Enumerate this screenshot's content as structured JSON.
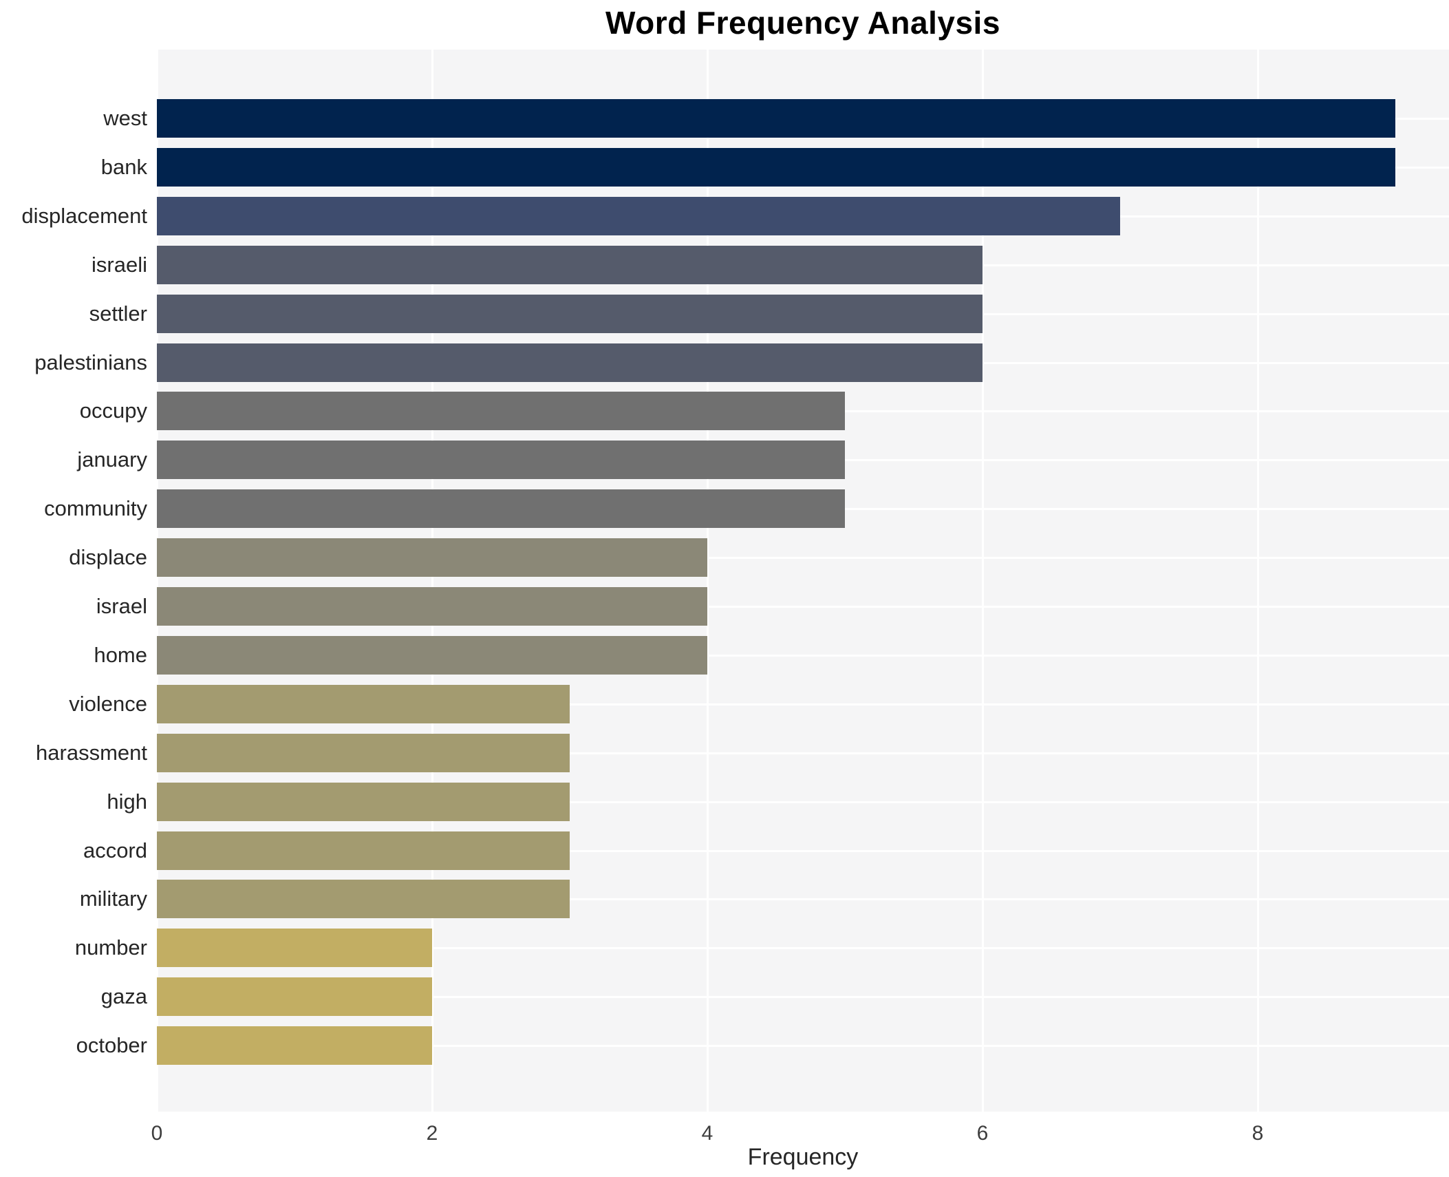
{
  "chart_data": {
    "type": "bar",
    "orientation": "horizontal",
    "title": "Word Frequency Analysis",
    "xlabel": "Frequency",
    "ylabel": "",
    "xlim": [
      0,
      9.39
    ],
    "xticks": [
      0,
      2,
      4,
      6,
      8
    ],
    "grid": true,
    "legend": "none",
    "categories": [
      "west",
      "bank",
      "displacement",
      "israeli",
      "settler",
      "palestinians",
      "occupy",
      "january",
      "community",
      "displace",
      "israel",
      "home",
      "violence",
      "harassment",
      "high",
      "accord",
      "military",
      "number",
      "gaza",
      "october"
    ],
    "values": [
      9,
      9,
      7,
      6,
      6,
      6,
      5,
      5,
      5,
      4,
      4,
      4,
      3,
      3,
      3,
      3,
      3,
      2,
      2,
      2
    ],
    "bar_colors": [
      "#01234e",
      "#01234e",
      "#3e4c6e",
      "#555b6b",
      "#555b6b",
      "#555b6b",
      "#707070",
      "#707070",
      "#707070",
      "#8b8877",
      "#8b8877",
      "#8b8877",
      "#a39b70",
      "#a39b70",
      "#a39b70",
      "#a39b70",
      "#a39b70",
      "#c2ae63",
      "#c2ae63",
      "#c2ae63"
    ]
  },
  "colors": {
    "plot_background": "#f5f5f6",
    "gridline": "#ffffff",
    "title_text": "#000000",
    "label_text": "#262626",
    "tick_text": "#3d3d3d"
  }
}
